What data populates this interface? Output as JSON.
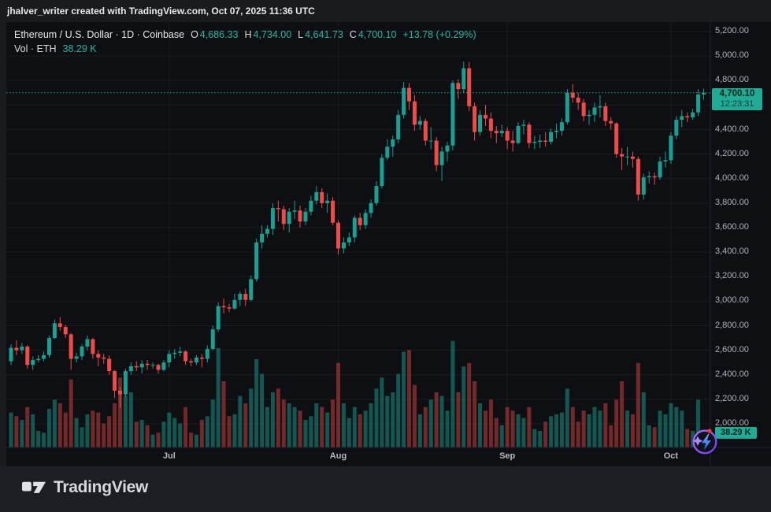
{
  "attribution": "jhalver_writer created with TradingView.com, Oct 07, 2025 11:36 UTC",
  "legend": {
    "symbol_title": "Ethereum / U.S. Dollar · 1D · Coinbase",
    "open_label": "O",
    "open": "4,686.33",
    "high_label": "H",
    "high": "4,734.00",
    "low_label": "L",
    "low": "4,641.73",
    "close_label": "C",
    "close": "4,700.10",
    "change": "+13.78 (+0.29%)",
    "volume_label": "Vol · ETH",
    "volume_value": "38.29 K"
  },
  "price_badge": {
    "price": "4,700.10",
    "countdown": "12:23:31"
  },
  "volume_badge": {
    "value": "38.29 K"
  },
  "footer": {
    "brand": "TradingView"
  },
  "colors": {
    "up": "#18a092",
    "down": "#f04a49",
    "volume_up": "rgba(24,160,146,0.5)",
    "volume_down": "rgba(240,74,73,0.45)",
    "accent_teal": "#22ab94",
    "badge_text": "#07231f",
    "grid": "rgba(250,250,250,0.055)",
    "axis_text": "#aeb2b8",
    "chart_bg": "#0e0f12",
    "frame_bg": "#191b1f"
  },
  "chart_data": {
    "type": "candlestick",
    "symbol": "Ethereum / U.S. Dollar",
    "interval": "1D",
    "exchange": "Coinbase",
    "start_date": "2025-06-02",
    "end_date": "2025-10-07",
    "price_axis_range": [
      2000,
      5200
    ],
    "price_ticks": [
      "5,200.00",
      "5,000.00",
      "4,800.00",
      "4,600.00",
      "4,400.00",
      "4,200.00",
      "4,000.00",
      "3,800.00",
      "3,600.00",
      "3,400.00",
      "3,200.00",
      "3,000.00",
      "2,800.00",
      "2,600.00",
      "2,400.00",
      "2,200.00",
      "2,000.00"
    ],
    "time_ticks": [
      {
        "label": "Jul",
        "candle_index": 29
      },
      {
        "label": "Aug",
        "candle_index": 60
      },
      {
        "label": "Sep",
        "candle_index": 91
      },
      {
        "label": "Oct",
        "candle_index": 121
      }
    ],
    "last": {
      "open": 4686.33,
      "high": 4734.0,
      "low": 4641.73,
      "close": 4700.1,
      "change": 13.78,
      "change_pct": 0.29,
      "volume_k": 38.29
    },
    "columns": [
      "open",
      "high",
      "low",
      "close",
      "volume_k"
    ],
    "candles": [
      [
        2510,
        2650,
        2480,
        2620,
        95
      ],
      [
        2620,
        2680,
        2560,
        2600,
        85
      ],
      [
        2600,
        2660,
        2570,
        2630,
        75
      ],
      [
        2630,
        2640,
        2450,
        2480,
        110
      ],
      [
        2480,
        2550,
        2440,
        2520,
        90
      ],
      [
        2520,
        2560,
        2500,
        2530,
        45
      ],
      [
        2530,
        2590,
        2510,
        2560,
        40
      ],
      [
        2560,
        2720,
        2540,
        2700,
        105
      ],
      [
        2700,
        2850,
        2690,
        2820,
        130
      ],
      [
        2820,
        2870,
        2760,
        2790,
        120
      ],
      [
        2790,
        2810,
        2700,
        2730,
        95
      ],
      [
        2730,
        2740,
        2440,
        2530,
        185
      ],
      [
        2530,
        2580,
        2500,
        2550,
        80
      ],
      [
        2550,
        2650,
        2520,
        2630,
        55
      ],
      [
        2630,
        2720,
        2600,
        2690,
        90
      ],
      [
        2690,
        2700,
        2530,
        2570,
        100
      ],
      [
        2570,
        2600,
        2470,
        2540,
        95
      ],
      [
        2540,
        2570,
        2490,
        2530,
        65
      ],
      [
        2530,
        2560,
        2400,
        2430,
        85
      ],
      [
        2430,
        2440,
        2210,
        2270,
        120
      ],
      [
        2270,
        2300,
        2130,
        2240,
        190
      ],
      [
        2240,
        2450,
        2220,
        2430,
        140
      ],
      [
        2430,
        2500,
        2400,
        2470,
        150
      ],
      [
        2470,
        2510,
        2430,
        2460,
        70
      ],
      [
        2460,
        2520,
        2410,
        2490,
        75
      ],
      [
        2490,
        2520,
        2440,
        2480,
        60
      ],
      [
        2480,
        2500,
        2450,
        2480,
        35
      ],
      [
        2480,
        2490,
        2410,
        2440,
        40
      ],
      [
        2440,
        2520,
        2430,
        2500,
        70
      ],
      [
        2500,
        2600,
        2460,
        2570,
        95
      ],
      [
        2570,
        2610,
        2530,
        2580,
        80
      ],
      [
        2580,
        2630,
        2550,
        2590,
        65
      ],
      [
        2590,
        2600,
        2480,
        2510,
        110
      ],
      [
        2510,
        2530,
        2470,
        2500,
        40
      ],
      [
        2500,
        2560,
        2480,
        2540,
        35
      ],
      [
        2540,
        2570,
        2460,
        2530,
        75
      ],
      [
        2530,
        2640,
        2500,
        2610,
        85
      ],
      [
        2610,
        2800,
        2600,
        2770,
        130
      ],
      [
        2770,
        2990,
        2750,
        2960,
        270
      ],
      [
        2960,
        3020,
        2900,
        2950,
        180
      ],
      [
        2950,
        2980,
        2910,
        2940,
        85
      ],
      [
        2940,
        3060,
        2930,
        3010,
        90
      ],
      [
        3010,
        3080,
        2960,
        3060,
        140
      ],
      [
        3060,
        3100,
        2960,
        3010,
        120
      ],
      [
        3010,
        3210,
        3000,
        3180,
        160
      ],
      [
        3180,
        3510,
        3160,
        3480,
        240
      ],
      [
        3480,
        3620,
        3430,
        3550,
        200
      ],
      [
        3550,
        3620,
        3520,
        3590,
        110
      ],
      [
        3590,
        3800,
        3540,
        3760,
        150
      ],
      [
        3760,
        3820,
        3650,
        3750,
        160
      ],
      [
        3750,
        3780,
        3580,
        3630,
        130
      ],
      [
        3630,
        3760,
        3560,
        3730,
        120
      ],
      [
        3730,
        3820,
        3670,
        3740,
        110
      ],
      [
        3740,
        3780,
        3600,
        3650,
        100
      ],
      [
        3650,
        3760,
        3620,
        3730,
        75
      ],
      [
        3730,
        3860,
        3700,
        3820,
        85
      ],
      [
        3820,
        3940,
        3790,
        3890,
        120
      ],
      [
        3890,
        3920,
        3760,
        3800,
        110
      ],
      [
        3800,
        3880,
        3720,
        3820,
        95
      ],
      [
        3820,
        3850,
        3620,
        3640,
        130
      ],
      [
        3640,
        3660,
        3380,
        3430,
        230
      ],
      [
        3430,
        3520,
        3390,
        3480,
        120
      ],
      [
        3480,
        3560,
        3450,
        3520,
        80
      ],
      [
        3520,
        3700,
        3480,
        3680,
        110
      ],
      [
        3680,
        3720,
        3580,
        3620,
        90
      ],
      [
        3620,
        3750,
        3590,
        3720,
        100
      ],
      [
        3720,
        3830,
        3680,
        3800,
        120
      ],
      [
        3800,
        3980,
        3780,
        3940,
        160
      ],
      [
        3940,
        4200,
        3920,
        4170,
        190
      ],
      [
        4170,
        4320,
        4150,
        4260,
        140
      ],
      [
        4260,
        4350,
        4180,
        4320,
        150
      ],
      [
        4320,
        4560,
        4290,
        4520,
        200
      ],
      [
        4520,
        4789,
        4490,
        4740,
        260
      ],
      [
        4740,
        4780,
        4560,
        4630,
        265
      ],
      [
        4630,
        4680,
        4390,
        4440,
        170
      ],
      [
        4440,
        4510,
        4400,
        4470,
        90
      ],
      [
        4470,
        4490,
        4270,
        4310,
        110
      ],
      [
        4310,
        4420,
        4240,
        4310,
        130
      ],
      [
        4310,
        4340,
        4060,
        4110,
        150
      ],
      [
        4110,
        4260,
        3980,
        4220,
        140
      ],
      [
        4220,
        4300,
        4140,
        4270,
        100
      ],
      [
        4270,
        4800,
        4230,
        4780,
        290
      ],
      [
        4780,
        4810,
        4650,
        4730,
        150
      ],
      [
        4730,
        4955,
        4700,
        4900,
        220
      ],
      [
        4900,
        4950,
        4550,
        4590,
        230
      ],
      [
        4590,
        4620,
        4310,
        4380,
        180
      ],
      [
        4380,
        4560,
        4350,
        4520,
        120
      ],
      [
        4520,
        4600,
        4430,
        4490,
        100
      ],
      [
        4490,
        4540,
        4330,
        4390,
        130
      ],
      [
        4390,
        4430,
        4290,
        4370,
        80
      ],
      [
        4370,
        4440,
        4340,
        4390,
        60
      ],
      [
        4390,
        4420,
        4240,
        4310,
        110
      ],
      [
        4310,
        4390,
        4220,
        4290,
        100
      ],
      [
        4290,
        4460,
        4280,
        4430,
        90
      ],
      [
        4430,
        4480,
        4360,
        4440,
        80
      ],
      [
        4440,
        4460,
        4250,
        4290,
        110
      ],
      [
        4290,
        4350,
        4240,
        4300,
        50
      ],
      [
        4300,
        4360,
        4250,
        4310,
        45
      ],
      [
        4310,
        4380,
        4260,
        4300,
        70
      ],
      [
        4300,
        4410,
        4280,
        4380,
        85
      ],
      [
        4380,
        4450,
        4330,
        4390,
        90
      ],
      [
        4390,
        4490,
        4350,
        4460,
        95
      ],
      [
        4460,
        4730,
        4440,
        4700,
        160
      ],
      [
        4700,
        4770,
        4620,
        4660,
        110
      ],
      [
        4660,
        4700,
        4560,
        4620,
        70
      ],
      [
        4620,
        4650,
        4470,
        4510,
        100
      ],
      [
        4510,
        4560,
        4440,
        4520,
        90
      ],
      [
        4520,
        4620,
        4460,
        4580,
        110
      ],
      [
        4580,
        4680,
        4500,
        4590,
        100
      ],
      [
        4590,
        4620,
        4430,
        4470,
        120
      ],
      [
        4470,
        4500,
        4400,
        4450,
        60
      ],
      [
        4450,
        4460,
        4170,
        4200,
        130
      ],
      [
        4200,
        4250,
        4070,
        4180,
        180
      ],
      [
        4180,
        4260,
        4110,
        4180,
        100
      ],
      [
        4180,
        4220,
        4090,
        4160,
        90
      ],
      [
        4160,
        4180,
        3820,
        3870,
        230
      ],
      [
        3870,
        4040,
        3830,
        4010,
        150
      ],
      [
        4010,
        4060,
        3960,
        4020,
        60
      ],
      [
        4020,
        4050,
        3950,
        4010,
        55
      ],
      [
        4010,
        4180,
        3990,
        4140,
        100
      ],
      [
        4140,
        4220,
        4090,
        4150,
        90
      ],
      [
        4150,
        4380,
        4120,
        4350,
        120
      ],
      [
        4350,
        4510,
        4320,
        4480,
        110
      ],
      [
        4480,
        4560,
        4420,
        4510,
        100
      ],
      [
        4510,
        4540,
        4460,
        4500,
        50
      ],
      [
        4500,
        4570,
        4480,
        4540,
        45
      ],
      [
        4540,
        4730,
        4510,
        4686,
        130
      ],
      [
        4686.33,
        4734,
        4641.73,
        4700.1,
        38.29
      ]
    ]
  }
}
